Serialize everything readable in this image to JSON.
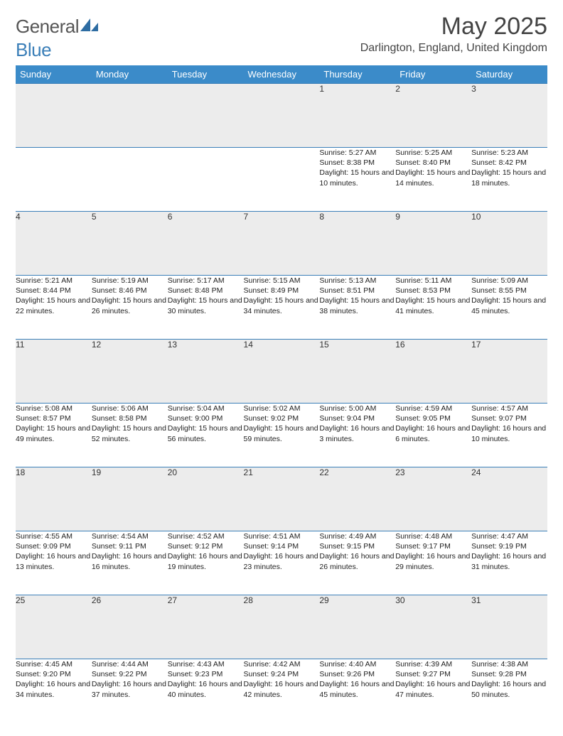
{
  "logo": {
    "text_general": "General",
    "text_blue": "Blue"
  },
  "title": "May 2025",
  "location": "Darlington, England, United Kingdom",
  "colors": {
    "header_bg": "#3b8bc9",
    "header_text": "#ffffff",
    "row_border": "#3b7fb8",
    "daynum_bg": "#ececec",
    "body_text": "#222222"
  },
  "weekdays": [
    "Sunday",
    "Monday",
    "Tuesday",
    "Wednesday",
    "Thursday",
    "Friday",
    "Saturday"
  ],
  "weeks": [
    [
      {
        "n": "",
        "sr": "",
        "ss": "",
        "dl": ""
      },
      {
        "n": "",
        "sr": "",
        "ss": "",
        "dl": ""
      },
      {
        "n": "",
        "sr": "",
        "ss": "",
        "dl": ""
      },
      {
        "n": "",
        "sr": "",
        "ss": "",
        "dl": ""
      },
      {
        "n": "1",
        "sr": "Sunrise: 5:27 AM",
        "ss": "Sunset: 8:38 PM",
        "dl": "Daylight: 15 hours and 10 minutes."
      },
      {
        "n": "2",
        "sr": "Sunrise: 5:25 AM",
        "ss": "Sunset: 8:40 PM",
        "dl": "Daylight: 15 hours and 14 minutes."
      },
      {
        "n": "3",
        "sr": "Sunrise: 5:23 AM",
        "ss": "Sunset: 8:42 PM",
        "dl": "Daylight: 15 hours and 18 minutes."
      }
    ],
    [
      {
        "n": "4",
        "sr": "Sunrise: 5:21 AM",
        "ss": "Sunset: 8:44 PM",
        "dl": "Daylight: 15 hours and 22 minutes."
      },
      {
        "n": "5",
        "sr": "Sunrise: 5:19 AM",
        "ss": "Sunset: 8:46 PM",
        "dl": "Daylight: 15 hours and 26 minutes."
      },
      {
        "n": "6",
        "sr": "Sunrise: 5:17 AM",
        "ss": "Sunset: 8:48 PM",
        "dl": "Daylight: 15 hours and 30 minutes."
      },
      {
        "n": "7",
        "sr": "Sunrise: 5:15 AM",
        "ss": "Sunset: 8:49 PM",
        "dl": "Daylight: 15 hours and 34 minutes."
      },
      {
        "n": "8",
        "sr": "Sunrise: 5:13 AM",
        "ss": "Sunset: 8:51 PM",
        "dl": "Daylight: 15 hours and 38 minutes."
      },
      {
        "n": "9",
        "sr": "Sunrise: 5:11 AM",
        "ss": "Sunset: 8:53 PM",
        "dl": "Daylight: 15 hours and 41 minutes."
      },
      {
        "n": "10",
        "sr": "Sunrise: 5:09 AM",
        "ss": "Sunset: 8:55 PM",
        "dl": "Daylight: 15 hours and 45 minutes."
      }
    ],
    [
      {
        "n": "11",
        "sr": "Sunrise: 5:08 AM",
        "ss": "Sunset: 8:57 PM",
        "dl": "Daylight: 15 hours and 49 minutes."
      },
      {
        "n": "12",
        "sr": "Sunrise: 5:06 AM",
        "ss": "Sunset: 8:58 PM",
        "dl": "Daylight: 15 hours and 52 minutes."
      },
      {
        "n": "13",
        "sr": "Sunrise: 5:04 AM",
        "ss": "Sunset: 9:00 PM",
        "dl": "Daylight: 15 hours and 56 minutes."
      },
      {
        "n": "14",
        "sr": "Sunrise: 5:02 AM",
        "ss": "Sunset: 9:02 PM",
        "dl": "Daylight: 15 hours and 59 minutes."
      },
      {
        "n": "15",
        "sr": "Sunrise: 5:00 AM",
        "ss": "Sunset: 9:04 PM",
        "dl": "Daylight: 16 hours and 3 minutes."
      },
      {
        "n": "16",
        "sr": "Sunrise: 4:59 AM",
        "ss": "Sunset: 9:05 PM",
        "dl": "Daylight: 16 hours and 6 minutes."
      },
      {
        "n": "17",
        "sr": "Sunrise: 4:57 AM",
        "ss": "Sunset: 9:07 PM",
        "dl": "Daylight: 16 hours and 10 minutes."
      }
    ],
    [
      {
        "n": "18",
        "sr": "Sunrise: 4:55 AM",
        "ss": "Sunset: 9:09 PM",
        "dl": "Daylight: 16 hours and 13 minutes."
      },
      {
        "n": "19",
        "sr": "Sunrise: 4:54 AM",
        "ss": "Sunset: 9:11 PM",
        "dl": "Daylight: 16 hours and 16 minutes."
      },
      {
        "n": "20",
        "sr": "Sunrise: 4:52 AM",
        "ss": "Sunset: 9:12 PM",
        "dl": "Daylight: 16 hours and 19 minutes."
      },
      {
        "n": "21",
        "sr": "Sunrise: 4:51 AM",
        "ss": "Sunset: 9:14 PM",
        "dl": "Daylight: 16 hours and 23 minutes."
      },
      {
        "n": "22",
        "sr": "Sunrise: 4:49 AM",
        "ss": "Sunset: 9:15 PM",
        "dl": "Daylight: 16 hours and 26 minutes."
      },
      {
        "n": "23",
        "sr": "Sunrise: 4:48 AM",
        "ss": "Sunset: 9:17 PM",
        "dl": "Daylight: 16 hours and 29 minutes."
      },
      {
        "n": "24",
        "sr": "Sunrise: 4:47 AM",
        "ss": "Sunset: 9:19 PM",
        "dl": "Daylight: 16 hours and 31 minutes."
      }
    ],
    [
      {
        "n": "25",
        "sr": "Sunrise: 4:45 AM",
        "ss": "Sunset: 9:20 PM",
        "dl": "Daylight: 16 hours and 34 minutes."
      },
      {
        "n": "26",
        "sr": "Sunrise: 4:44 AM",
        "ss": "Sunset: 9:22 PM",
        "dl": "Daylight: 16 hours and 37 minutes."
      },
      {
        "n": "27",
        "sr": "Sunrise: 4:43 AM",
        "ss": "Sunset: 9:23 PM",
        "dl": "Daylight: 16 hours and 40 minutes."
      },
      {
        "n": "28",
        "sr": "Sunrise: 4:42 AM",
        "ss": "Sunset: 9:24 PM",
        "dl": "Daylight: 16 hours and 42 minutes."
      },
      {
        "n": "29",
        "sr": "Sunrise: 4:40 AM",
        "ss": "Sunset: 9:26 PM",
        "dl": "Daylight: 16 hours and 45 minutes."
      },
      {
        "n": "30",
        "sr": "Sunrise: 4:39 AM",
        "ss": "Sunset: 9:27 PM",
        "dl": "Daylight: 16 hours and 47 minutes."
      },
      {
        "n": "31",
        "sr": "Sunrise: 4:38 AM",
        "ss": "Sunset: 9:28 PM",
        "dl": "Daylight: 16 hours and 50 minutes."
      }
    ]
  ]
}
